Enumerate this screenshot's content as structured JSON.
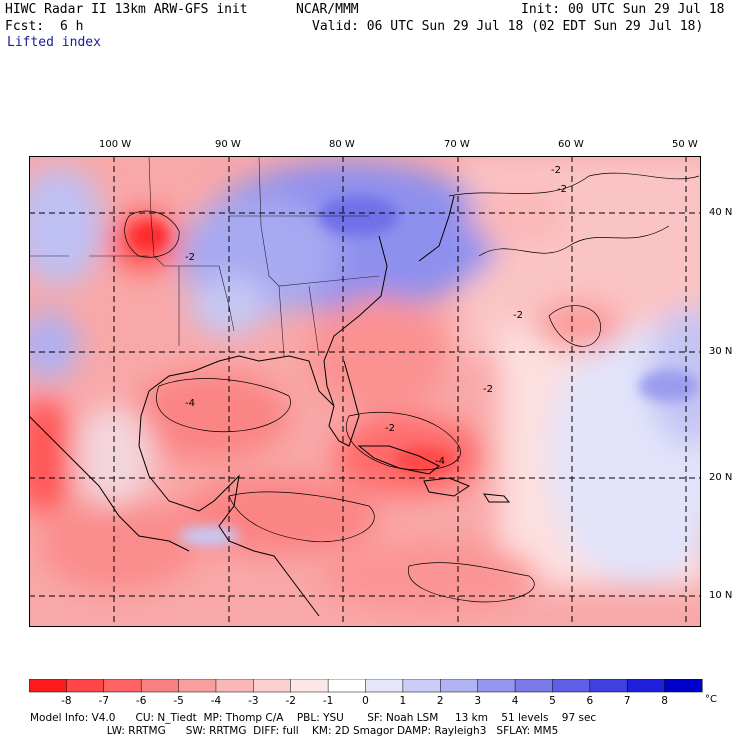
{
  "header": {
    "model": "HIWC Radar II 13km ARW-GFS init",
    "org": "NCAR/MMM",
    "init": "Init: 00 UTC Sun 29 Jul 18",
    "fcst_label": "Fcst:",
    "fcst_value": "6 h",
    "valid": "Valid: 06 UTC Sun 29 Jul 18 (02 EDT Sun 29 Jul 18)",
    "field": "Lifted index"
  },
  "map": {
    "lon_labels": [
      "100 W",
      "90 W",
      "80 W",
      "70 W",
      "60 W",
      "50 W"
    ],
    "lat_labels": [
      "40 N",
      "30 N",
      "20 N",
      "10 N"
    ],
    "contour_labels": [
      "-2",
      "-2",
      "-2",
      "-2",
      "-4",
      "-4",
      "-2",
      "-2"
    ]
  },
  "colorbar": {
    "ticks": [
      "-8",
      "-7",
      "-6",
      "-5",
      "-4",
      "-3",
      "-2",
      "-1",
      "0",
      "1",
      "2",
      "3",
      "4",
      "5",
      "6",
      "7",
      "8"
    ],
    "unit": "°C",
    "colors": [
      "#ff1a1a",
      "#ff4545",
      "#ff6464",
      "#f98080",
      "#f99d9d",
      "#fbb7b7",
      "#fcd0d0",
      "#fde6e6",
      "#ffffff",
      "#e6e6fb",
      "#cccdf6",
      "#b1b3f3",
      "#9596ef",
      "#7a7be9",
      "#5e5fe6",
      "#3f40e0",
      "#1f20dd",
      "#0000cc"
    ]
  },
  "footer": {
    "line1": "Model Info: V4.0      CU: N_Tiedt  MP: Thomp C/A    PBL: YSU       SF: Noah LSM     13 km    51 levels    97 sec",
    "line2": "                       LW: RRTMG      SW: RRTMG  DIFF: full    KM: 2D Smagor DAMP: Rayleigh3   SFLAY: MM5"
  }
}
